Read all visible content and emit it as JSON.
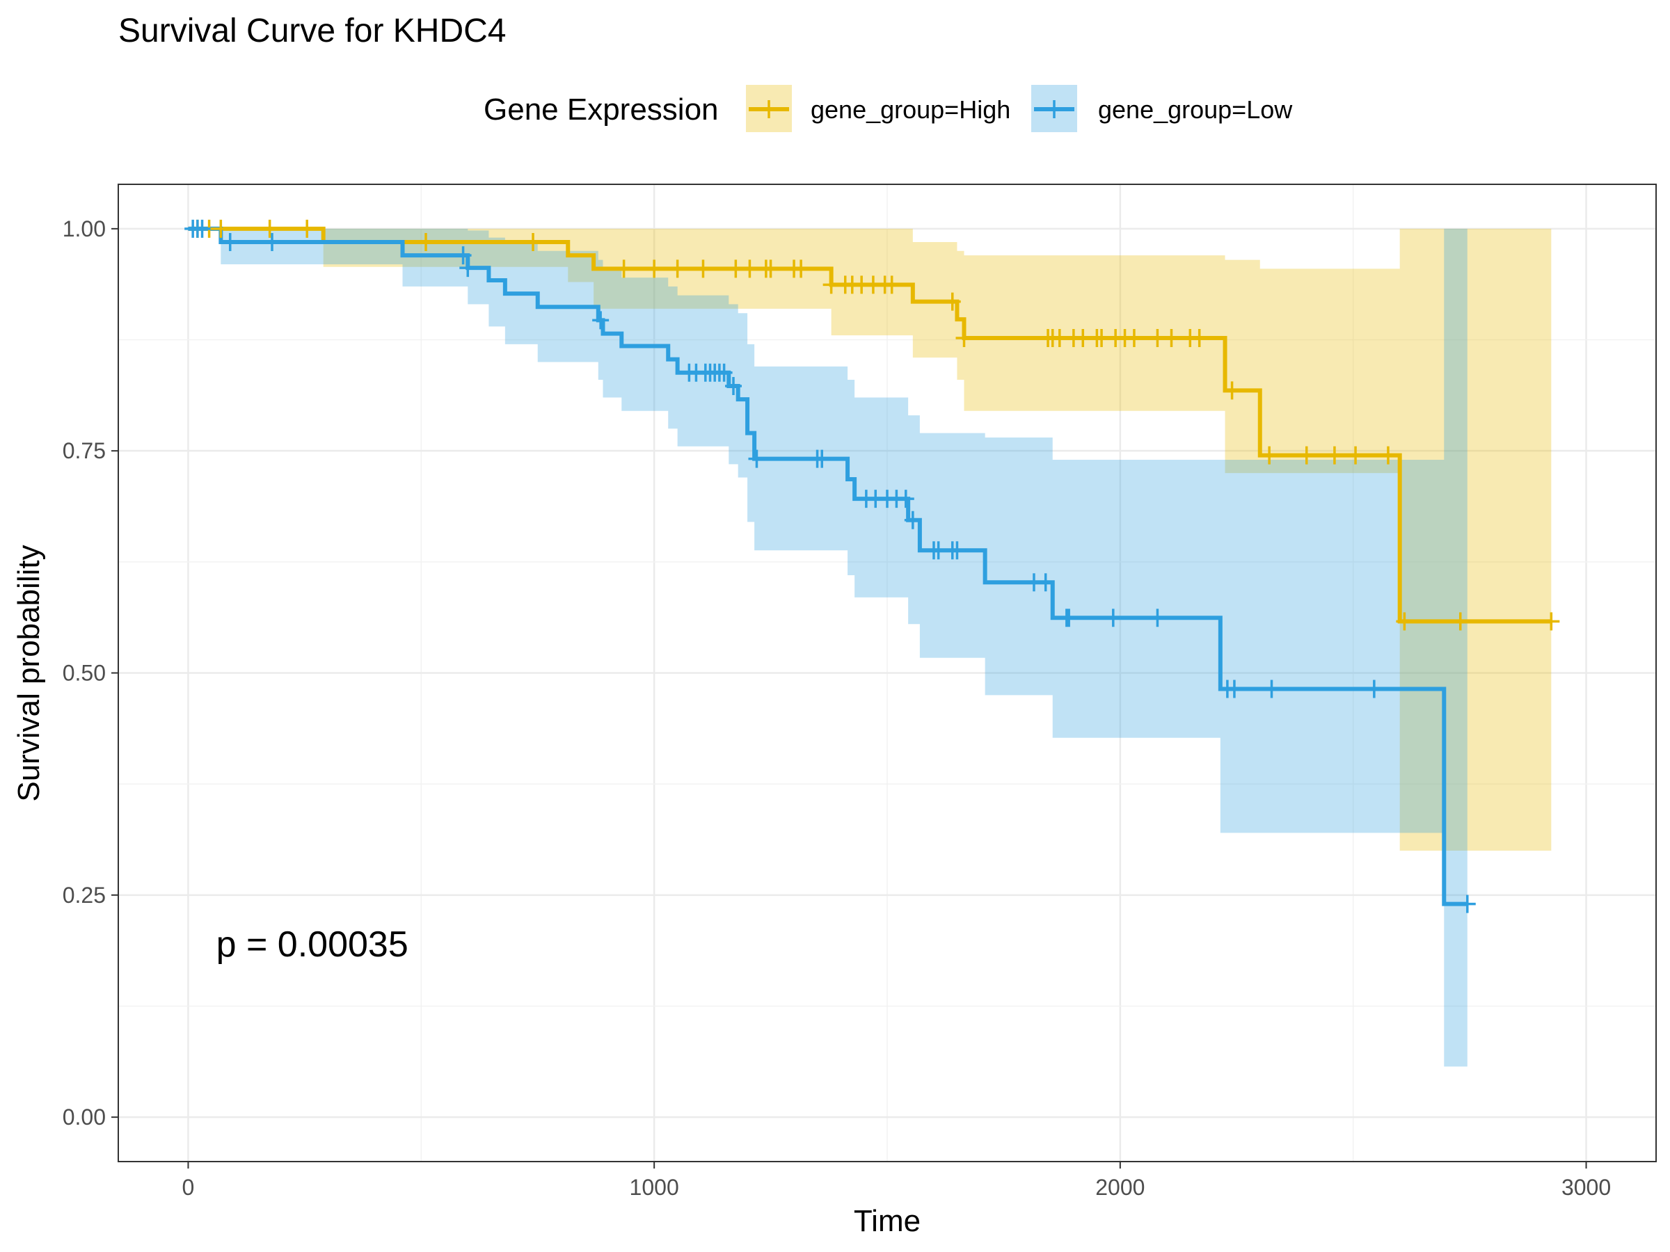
{
  "chart_data": {
    "type": "line",
    "title": "Survival Curve for KHDC4",
    "xlabel": "Time",
    "ylabel": "Survival probability",
    "xlim": [
      -150,
      3150
    ],
    "ylim": [
      -0.05,
      1.05
    ],
    "x_ticks": [
      0,
      1000,
      2000,
      3000
    ],
    "x_tick_labels": [
      "0",
      "1000",
      "2000",
      "3000"
    ],
    "y_ticks": [
      0,
      0.25,
      0.5,
      0.75,
      1.0
    ],
    "y_tick_labels": [
      "0.00",
      "0.25",
      "0.50",
      "0.75",
      "1.00"
    ],
    "grid": true,
    "legend": {
      "title": "Gene Expression",
      "position": "top",
      "entries": [
        "gene_group=High",
        "gene_group=Low"
      ]
    },
    "annotation": "p = 0.00035",
    "annotation_position": {
      "x": 60,
      "y": 0.195
    },
    "series": [
      {
        "name": "gene_group=High",
        "color": "#E7B800",
        "band_color": "#E7B800",
        "steps": [
          {
            "t": 0,
            "s": 1.0,
            "lo": 1.0,
            "hi": 1.0
          },
          {
            "t": 70,
            "s": 1.0,
            "lo": 1.0,
            "hi": 1.0
          },
          {
            "t": 290,
            "s": 0.985,
            "lo": 0.957,
            "hi": 1.0
          },
          {
            "t": 815,
            "s": 0.97,
            "lo": 0.94,
            "hi": 1.0
          },
          {
            "t": 870,
            "s": 0.955,
            "lo": 0.91,
            "hi": 1.0
          },
          {
            "t": 1380,
            "s": 0.937,
            "lo": 0.88,
            "hi": 1.0
          },
          {
            "t": 1555,
            "s": 0.918,
            "lo": 0.855,
            "hi": 0.985
          },
          {
            "t": 1650,
            "s": 0.898,
            "lo": 0.83,
            "hi": 0.975
          },
          {
            "t": 1665,
            "s": 0.877,
            "lo": 0.795,
            "hi": 0.97
          },
          {
            "t": 2225,
            "s": 0.818,
            "lo": 0.725,
            "hi": 0.965
          },
          {
            "t": 2300,
            "s": 0.745,
            "lo": 0.725,
            "hi": 0.955
          },
          {
            "t": 2600,
            "s": 0.558,
            "lo": 0.3,
            "hi": 1.0
          }
        ],
        "end": 2925,
        "censor_times": [
          20,
          45,
          70,
          175,
          255,
          510,
          740,
          935,
          1000,
          1050,
          1105,
          1175,
          1205,
          1240,
          1250,
          1300,
          1315,
          1380,
          1410,
          1425,
          1445,
          1470,
          1495,
          1510,
          1640,
          1665,
          1845,
          1855,
          1870,
          1900,
          1920,
          1950,
          1960,
          1990,
          2010,
          2030,
          2080,
          2110,
          2150,
          2170,
          2240,
          2320,
          2400,
          2460,
          2505,
          2575,
          2610,
          2730,
          2925
        ]
      },
      {
        "name": "gene_group=Low",
        "color": "#2E9FDF",
        "band_color": "#2E9FDF",
        "steps": [
          {
            "t": 0,
            "s": 1.0,
            "lo": 1.0,
            "hi": 1.0
          },
          {
            "t": 70,
            "s": 0.985,
            "lo": 0.96,
            "hi": 1.0
          },
          {
            "t": 460,
            "s": 0.97,
            "lo": 0.935,
            "hi": 1.0
          },
          {
            "t": 600,
            "s": 0.956,
            "lo": 0.915,
            "hi": 0.998
          },
          {
            "t": 645,
            "s": 0.942,
            "lo": 0.89,
            "hi": 0.99
          },
          {
            "t": 680,
            "s": 0.927,
            "lo": 0.87,
            "hi": 0.985
          },
          {
            "t": 750,
            "s": 0.912,
            "lo": 0.85,
            "hi": 0.975
          },
          {
            "t": 880,
            "s": 0.897,
            "lo": 0.83,
            "hi": 0.965
          },
          {
            "t": 890,
            "s": 0.882,
            "lo": 0.81,
            "hi": 0.955
          },
          {
            "t": 930,
            "s": 0.868,
            "lo": 0.795,
            "hi": 0.945
          },
          {
            "t": 1030,
            "s": 0.853,
            "lo": 0.775,
            "hi": 0.935
          },
          {
            "t": 1050,
            "s": 0.838,
            "lo": 0.755,
            "hi": 0.925
          },
          {
            "t": 1160,
            "s": 0.823,
            "lo": 0.735,
            "hi": 0.915
          },
          {
            "t": 1180,
            "s": 0.808,
            "lo": 0.72,
            "hi": 0.905
          },
          {
            "t": 1200,
            "s": 0.77,
            "lo": 0.67,
            "hi": 0.87
          },
          {
            "t": 1215,
            "s": 0.741,
            "lo": 0.638,
            "hi": 0.845
          },
          {
            "t": 1415,
            "s": 0.718,
            "lo": 0.61,
            "hi": 0.83
          },
          {
            "t": 1430,
            "s": 0.696,
            "lo": 0.585,
            "hi": 0.81
          },
          {
            "t": 1545,
            "s": 0.672,
            "lo": 0.555,
            "hi": 0.79
          },
          {
            "t": 1570,
            "s": 0.638,
            "lo": 0.517,
            "hi": 0.77
          },
          {
            "t": 1710,
            "s": 0.602,
            "lo": 0.475,
            "hi": 0.765
          },
          {
            "t": 1855,
            "s": 0.562,
            "lo": 0.427,
            "hi": 0.74
          },
          {
            "t": 2215,
            "s": 0.482,
            "lo": 0.32,
            "hi": 0.74
          },
          {
            "t": 2695,
            "s": 0.24,
            "lo": 0.057,
            "hi": 1.0
          }
        ],
        "end": 2745,
        "censor_times": [
          10,
          20,
          30,
          90,
          180,
          590,
          600,
          885,
          1075,
          1090,
          1110,
          1120,
          1130,
          1140,
          1150,
          1170,
          1220,
          1350,
          1360,
          1455,
          1475,
          1500,
          1520,
          1540,
          1555,
          1600,
          1610,
          1640,
          1650,
          1815,
          1840,
          1885,
          1890,
          1985,
          2080,
          2230,
          2245,
          2325,
          2545,
          2745
        ]
      }
    ]
  }
}
